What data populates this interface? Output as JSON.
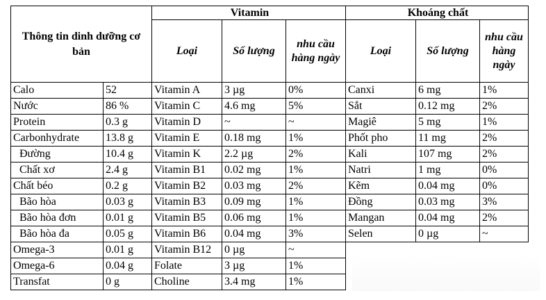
{
  "headers": {
    "basic": "Thông tin dinh dưỡng cơ bản",
    "vitamin": "Vitamin",
    "mineral": "Khoáng chất",
    "col_type": "Loại",
    "col_amount": "Số lượng",
    "col_daily": "nhu cầu hàng ngày"
  },
  "basic_rows": [
    {
      "name": "Calo",
      "value": "52"
    },
    {
      "name": "Nước",
      "value": "86 %"
    },
    {
      "name": "Protein",
      "value": "0.3 g"
    },
    {
      "name": "Carbonhydrate",
      "value": "13.8 g"
    },
    {
      "name": "Đường",
      "value": "10.4 g"
    },
    {
      "name": "Chất xơ",
      "value": "2.4 g"
    },
    {
      "name": "Chất béo",
      "value": "0.2 g"
    },
    {
      "name": "Bão hòa",
      "value": "0.03 g"
    },
    {
      "name": "Bão hòa đơn",
      "value": "0.01 g"
    },
    {
      "name": "Bão hòa đa",
      "value": "0.05 g"
    },
    {
      "name": "Omega-3",
      "value": "0.01 g"
    },
    {
      "name": "Omega-6",
      "value": "0.04 g"
    },
    {
      "name": "Transfat",
      "value": "0 g"
    }
  ],
  "vitamin_rows": [
    {
      "name": "Vitamin A",
      "amount": "3 µg",
      "daily": "0%"
    },
    {
      "name": "Vitamin C",
      "amount": "4.6 mg",
      "daily": "5%"
    },
    {
      "name": "Vitamin D",
      "amount": "~",
      "daily": "~"
    },
    {
      "name": "Vitamin E",
      "amount": "0.18 mg",
      "daily": "1%"
    },
    {
      "name": "Vitamin K",
      "amount": "2.2 µg",
      "daily": "2%"
    },
    {
      "name": "Vitamin B1",
      "amount": "0.02 mg",
      "daily": "1%"
    },
    {
      "name": "Vitamin B2",
      "amount": "0.03 mg",
      "daily": "2%"
    },
    {
      "name": "Vitamin B3",
      "amount": "0.09 mg",
      "daily": "1%"
    },
    {
      "name": "Vitamin B5",
      "amount": "0.06 mg",
      "daily": "1%"
    },
    {
      "name": "Vitamin B6",
      "amount": "0.04 mg",
      "daily": "3%"
    },
    {
      "name": "Vitamin B12",
      "amount": "0 µg",
      "daily": "~"
    },
    {
      "name": "Folate",
      "amount": "3 µg",
      "daily": "1%"
    },
    {
      "name": "Choline",
      "amount": "3.4 mg",
      "daily": "1%"
    }
  ],
  "mineral_rows": [
    {
      "name": "Canxi",
      "amount": "6 mg",
      "daily": "1%"
    },
    {
      "name": "Sắt",
      "amount": "0.12 mg",
      "daily": "2%"
    },
    {
      "name": "Magiê",
      "amount": "5 mg",
      "daily": "1%"
    },
    {
      "name": "Phốt pho",
      "amount": "11 mg",
      "daily": "2%"
    },
    {
      "name": "Kali",
      "amount": "107 mg",
      "daily": "2%"
    },
    {
      "name": "Natri",
      "amount": "1 mg",
      "daily": "0%"
    },
    {
      "name": "Kẽm",
      "amount": "0.04 mg",
      "daily": "0%"
    },
    {
      "name": "Đồng",
      "amount": "0.03 mg",
      "daily": "3%"
    },
    {
      "name": "Mangan",
      "amount": "0.04 mg",
      "daily": "2%"
    },
    {
      "name": "Selen",
      "amount": "0 µg",
      "daily": "~"
    }
  ]
}
